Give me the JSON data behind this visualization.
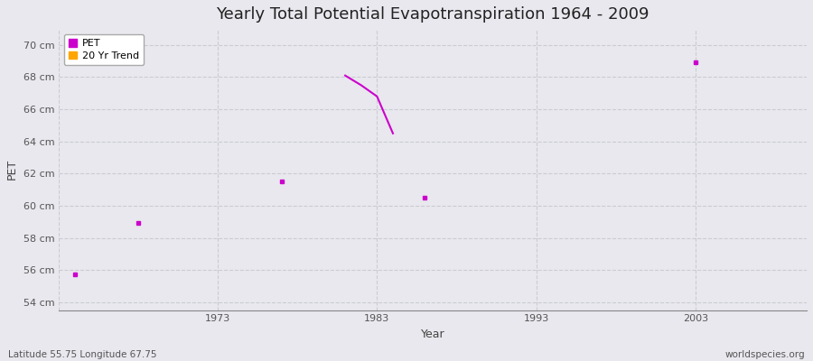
{
  "title": "Yearly Total Potential Evapotranspiration 1964 - 2009",
  "xlabel": "Year",
  "ylabel": "PET",
  "background_color": "#e8e8ee",
  "plot_bg_color": "#e8e8ee",
  "grid_color": "#c8c8d0",
  "xlim": [
    1963,
    2010
  ],
  "ylim": [
    53.5,
    71.0
  ],
  "yticks": [
    54,
    56,
    58,
    60,
    62,
    64,
    66,
    68,
    70
  ],
  "ytick_labels": [
    "54 cm",
    "56 cm",
    "58 cm",
    "60 cm",
    "62 cm",
    "64 cm",
    "66 cm",
    "68 cm",
    "70 cm"
  ],
  "xticks": [
    1963,
    1973,
    1983,
    1993,
    2003
  ],
  "xtick_labels": [
    "",
    "1973",
    "1983",
    "1993",
    "2003"
  ],
  "pet_color": "#cc00cc",
  "trend_color": "#ffa500",
  "pet_scatter_points": [
    [
      1964,
      55.7
    ],
    [
      1968,
      58.9
    ],
    [
      1977,
      61.5
    ],
    [
      1986,
      60.5
    ],
    [
      2003,
      68.9
    ]
  ],
  "trend_line": [
    [
      1981,
      68.1
    ],
    [
      1982,
      67.5
    ],
    [
      1983,
      66.8
    ],
    [
      1984,
      64.5
    ]
  ],
  "footnote_left": "Latitude 55.75 Longitude 67.75",
  "footnote_right": "worldspecies.org",
  "title_fontsize": 13,
  "axis_fontsize": 9,
  "tick_fontsize": 8,
  "footnote_fontsize": 7.5
}
